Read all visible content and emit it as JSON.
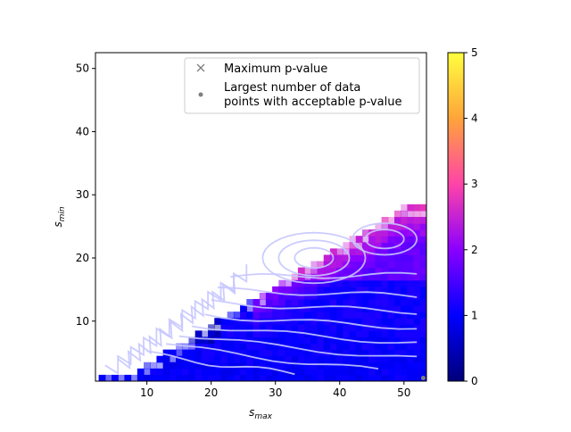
{
  "chart_data": {
    "type": "heatmap",
    "title": "",
    "xlabel": {
      "base": "s",
      "sub": "max"
    },
    "ylabel": {
      "base": "s",
      "sub": "min"
    },
    "xlim": [
      2,
      53.5
    ],
    "ylim": [
      0.5,
      52.5
    ],
    "x_ticks": [
      10,
      20,
      30,
      40,
      50
    ],
    "y_ticks": [
      10,
      20,
      30,
      40,
      50
    ],
    "colorbar": {
      "range": [
        0,
        5
      ],
      "ticks": [
        0,
        1,
        2,
        3,
        4,
        5
      ],
      "colormap": "gnuplot2",
      "stops": [
        "#00007a",
        "#0000ff",
        "#8a00ff",
        "#ff44a8",
        "#ffa43a",
        "#ffff3f"
      ]
    },
    "legend": {
      "placement": "upper-right",
      "entries": [
        {
          "marker": "x",
          "label": "Maximum p-value"
        },
        {
          "marker": "dot",
          "label": "Largest number of data points with acceptable p-value",
          "lines": [
            "Largest number of data",
            "points with acceptable p-value"
          ]
        }
      ]
    },
    "grid": false,
    "region": "s_min < s_max (upper limit of populated region rises from ~1 at s_max 3 to ~28 at s_max 53)",
    "marker_points": {
      "largest_number_acceptable": {
        "x": 53,
        "y": 1
      }
    },
    "contour_color": "#c7c7ff"
  }
}
